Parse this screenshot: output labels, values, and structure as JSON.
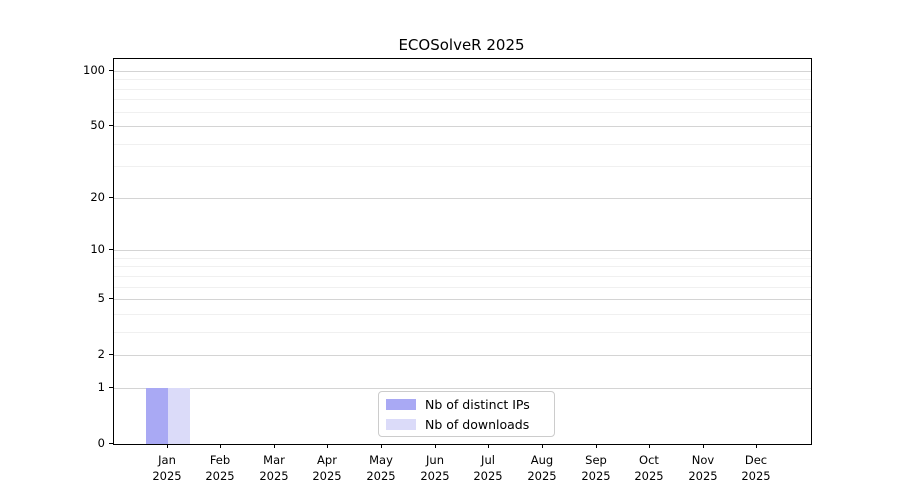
{
  "chart_data": {
    "type": "bar",
    "title": "ECOSolveR 2025",
    "categories": [
      "Jan",
      "Feb",
      "Mar",
      "Apr",
      "May",
      "Jun",
      "Jul",
      "Aug",
      "Sep",
      "Oct",
      "Nov",
      "Dec"
    ],
    "year": "2025",
    "series": [
      {
        "name": "Nb of distinct IPs",
        "color": "#a9a9f4",
        "values": [
          1,
          0,
          0,
          0,
          0,
          0,
          0,
          0,
          0,
          0,
          0,
          0
        ]
      },
      {
        "name": "Nb of downloads",
        "color": "#dbdbf9",
        "values": [
          1,
          0,
          0,
          0,
          0,
          0,
          0,
          0,
          0,
          0,
          0,
          0
        ]
      }
    ],
    "yscale": "log1p",
    "ylim": [
      0,
      116
    ],
    "y_major_ticks": [
      0,
      1,
      2,
      5,
      10,
      20,
      50,
      100
    ],
    "y_minor_ticks": [
      3,
      4,
      6,
      7,
      8,
      9,
      30,
      40,
      60,
      70,
      80,
      90
    ],
    "grid": "horizontal",
    "legend_position": "lower center",
    "axis_color": "#000000",
    "major_grid_color": "#d4d4d4",
    "minor_grid_color": "#f0f0f0"
  }
}
